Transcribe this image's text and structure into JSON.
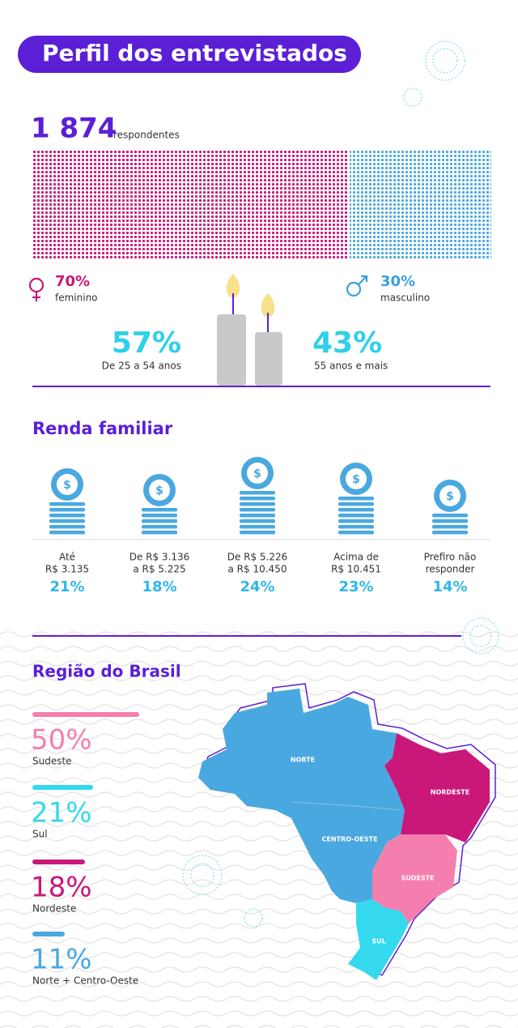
{
  "header": {
    "title": "Perfil dos entrevistados"
  },
  "respondents": {
    "count": "1 874",
    "label": "respondentes"
  },
  "gender": {
    "female": {
      "percent": "70%",
      "label": "feminino"
    },
    "male": {
      "percent": "30%",
      "label": "masculino"
    }
  },
  "age": [
    {
      "percent": "57%",
      "label": "De 25 a 54 anos"
    },
    {
      "percent": "43%",
      "label": "55 anos e mais"
    }
  ],
  "income": {
    "title": "Renda familiar",
    "currency_symbol": "$",
    "items": [
      {
        "label": [
          "Até",
          "R$ 3.135"
        ],
        "percent": "21%"
      },
      {
        "label": [
          "De R$ 3.136",
          "a R$ 5.225"
        ],
        "percent": "18%"
      },
      {
        "label": [
          "De R$ 5.226",
          "a R$ 10.450"
        ],
        "percent": "24%"
      },
      {
        "label": [
          "Acima de",
          "R$ 10.451"
        ],
        "percent": "23%"
      },
      {
        "label": [
          "Prefiro não",
          "responder"
        ],
        "percent": "14%"
      }
    ]
  },
  "region": {
    "title": "Região do Brasil",
    "items": [
      {
        "percent": "50%",
        "label": "Sudeste"
      },
      {
        "percent": "21%",
        "label": "Sul"
      },
      {
        "percent": "18%",
        "label": "Nordeste"
      },
      {
        "percent": "11%",
        "label": "Norte + Centro-Oeste"
      }
    ],
    "map_labels": [
      "NORTE",
      "NORDESTE",
      "CENTRO-OESTE",
      "SUDESTE",
      "SUL"
    ]
  }
}
